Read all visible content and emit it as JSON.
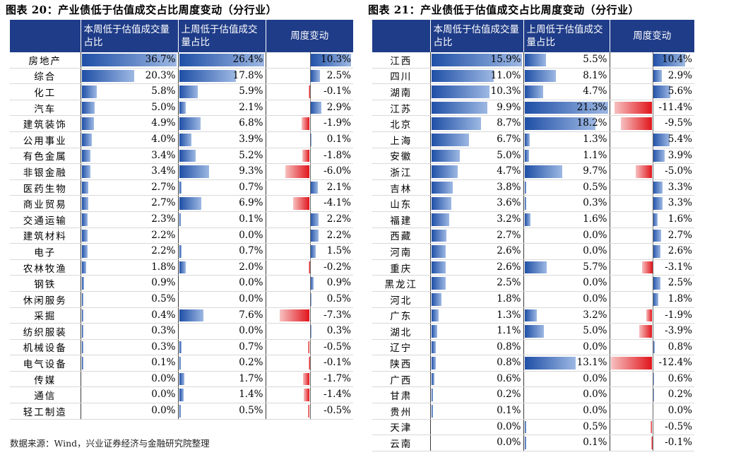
{
  "left": {
    "title": "图表 20：产业债低于估值成交占比周度变动（分行业）",
    "headers": [
      "",
      "本周低于估值成交量占比",
      "上周低于估值成交量占比",
      "周度变动"
    ],
    "rows": [
      {
        "name": "房地产",
        "cur": "36.7%",
        "prev": "26.4%",
        "chg": "10.3%",
        "cur_v": 36.7,
        "prev_v": 26.4,
        "chg_v": 10.3
      },
      {
        "name": "综合",
        "cur": "20.3%",
        "prev": "17.8%",
        "chg": "2.5%",
        "cur_v": 20.3,
        "prev_v": 17.8,
        "chg_v": 2.5
      },
      {
        "name": "化工",
        "cur": "5.8%",
        "prev": "5.9%",
        "chg": "-0.1%",
        "cur_v": 5.8,
        "prev_v": 5.9,
        "chg_v": -0.1
      },
      {
        "name": "汽车",
        "cur": "5.0%",
        "prev": "2.1%",
        "chg": "2.9%",
        "cur_v": 5.0,
        "prev_v": 2.1,
        "chg_v": 2.9
      },
      {
        "name": "建筑装饰",
        "cur": "4.9%",
        "prev": "6.8%",
        "chg": "-1.9%",
        "cur_v": 4.9,
        "prev_v": 6.8,
        "chg_v": -1.9
      },
      {
        "name": "公用事业",
        "cur": "4.0%",
        "prev": "3.9%",
        "chg": "0.1%",
        "cur_v": 4.0,
        "prev_v": 3.9,
        "chg_v": 0.1
      },
      {
        "name": "有色金属",
        "cur": "3.4%",
        "prev": "5.2%",
        "chg": "-1.8%",
        "cur_v": 3.4,
        "prev_v": 5.2,
        "chg_v": -1.8
      },
      {
        "name": "非银金融",
        "cur": "3.4%",
        "prev": "9.3%",
        "chg": "-6.0%",
        "cur_v": 3.4,
        "prev_v": 9.3,
        "chg_v": -6.0
      },
      {
        "name": "医药生物",
        "cur": "2.7%",
        "prev": "0.7%",
        "chg": "2.1%",
        "cur_v": 2.7,
        "prev_v": 0.7,
        "chg_v": 2.1
      },
      {
        "name": "商业贸易",
        "cur": "2.7%",
        "prev": "6.9%",
        "chg": "-4.1%",
        "cur_v": 2.7,
        "prev_v": 6.9,
        "chg_v": -4.1
      },
      {
        "name": "交通运输",
        "cur": "2.3%",
        "prev": "0.1%",
        "chg": "2.2%",
        "cur_v": 2.3,
        "prev_v": 0.1,
        "chg_v": 2.2
      },
      {
        "name": "建筑材料",
        "cur": "2.2%",
        "prev": "0.0%",
        "chg": "2.2%",
        "cur_v": 2.2,
        "prev_v": 0.0,
        "chg_v": 2.2
      },
      {
        "name": "电子",
        "cur": "2.2%",
        "prev": "0.7%",
        "chg": "1.5%",
        "cur_v": 2.2,
        "prev_v": 0.7,
        "chg_v": 1.5
      },
      {
        "name": "农林牧渔",
        "cur": "1.8%",
        "prev": "2.0%",
        "chg": "-0.2%",
        "cur_v": 1.8,
        "prev_v": 2.0,
        "chg_v": -0.2
      },
      {
        "name": "钢铁",
        "cur": "0.9%",
        "prev": "0.0%",
        "chg": "0.9%",
        "cur_v": 0.9,
        "prev_v": 0.0,
        "chg_v": 0.9
      },
      {
        "name": "休闲服务",
        "cur": "0.5%",
        "prev": "0.0%",
        "chg": "0.5%",
        "cur_v": 0.5,
        "prev_v": 0.0,
        "chg_v": 0.5
      },
      {
        "name": "采掘",
        "cur": "0.4%",
        "prev": "7.6%",
        "chg": "-7.3%",
        "cur_v": 0.4,
        "prev_v": 7.6,
        "chg_v": -7.3
      },
      {
        "name": "纺织服装",
        "cur": "0.3%",
        "prev": "0.0%",
        "chg": "0.3%",
        "cur_v": 0.3,
        "prev_v": 0.0,
        "chg_v": 0.3
      },
      {
        "name": "机械设备",
        "cur": "0.3%",
        "prev": "0.7%",
        "chg": "-0.5%",
        "cur_v": 0.3,
        "prev_v": 0.7,
        "chg_v": -0.5
      },
      {
        "name": "电气设备",
        "cur": "0.1%",
        "prev": "0.2%",
        "chg": "-0.1%",
        "cur_v": 0.1,
        "prev_v": 0.2,
        "chg_v": -0.1
      },
      {
        "name": "传媒",
        "cur": "0.0%",
        "prev": "1.7%",
        "chg": "-1.7%",
        "cur_v": 0.0,
        "prev_v": 1.7,
        "chg_v": -1.7
      },
      {
        "name": "通信",
        "cur": "0.0%",
        "prev": "1.4%",
        "chg": "-1.4%",
        "cur_v": 0.0,
        "prev_v": 1.4,
        "chg_v": -1.4
      },
      {
        "name": "轻工制造",
        "cur": "0.0%",
        "prev": "0.5%",
        "chg": "-0.5%",
        "cur_v": 0.0,
        "prev_v": 0.5,
        "chg_v": -0.5
      }
    ]
  },
  "right": {
    "title": "图表 21：产业债低于估值成交占比周度变动（分行业）",
    "headers": [
      "",
      "本周低于估值成交量占比",
      "上周低于估值成交量占比",
      "周度变动"
    ],
    "rows": [
      {
        "name": "江西",
        "cur": "15.9%",
        "prev": "5.5%",
        "chg": "10.4%",
        "cur_v": 15.9,
        "prev_v": 5.5,
        "chg_v": 10.4
      },
      {
        "name": "四川",
        "cur": "11.0%",
        "prev": "8.1%",
        "chg": "2.9%",
        "cur_v": 11.0,
        "prev_v": 8.1,
        "chg_v": 2.9
      },
      {
        "name": "湖南",
        "cur": "10.3%",
        "prev": "4.7%",
        "chg": "5.6%",
        "cur_v": 10.3,
        "prev_v": 4.7,
        "chg_v": 5.6
      },
      {
        "name": "江苏",
        "cur": "9.9%",
        "prev": "21.3%",
        "chg": "-11.4%",
        "cur_v": 9.9,
        "prev_v": 21.3,
        "chg_v": -11.4
      },
      {
        "name": "北京",
        "cur": "8.7%",
        "prev": "18.2%",
        "chg": "-9.5%",
        "cur_v": 8.7,
        "prev_v": 18.2,
        "chg_v": -9.5
      },
      {
        "name": "上海",
        "cur": "6.7%",
        "prev": "1.3%",
        "chg": "5.4%",
        "cur_v": 6.7,
        "prev_v": 1.3,
        "chg_v": 5.4
      },
      {
        "name": "安徽",
        "cur": "5.0%",
        "prev": "1.1%",
        "chg": "3.9%",
        "cur_v": 5.0,
        "prev_v": 1.1,
        "chg_v": 3.9
      },
      {
        "name": "浙江",
        "cur": "4.7%",
        "prev": "9.7%",
        "chg": "-5.0%",
        "cur_v": 4.7,
        "prev_v": 9.7,
        "chg_v": -5.0
      },
      {
        "name": "吉林",
        "cur": "3.8%",
        "prev": "0.5%",
        "chg": "3.3%",
        "cur_v": 3.8,
        "prev_v": 0.5,
        "chg_v": 3.3
      },
      {
        "name": "山东",
        "cur": "3.6%",
        "prev": "0.3%",
        "chg": "3.3%",
        "cur_v": 3.6,
        "prev_v": 0.3,
        "chg_v": 3.3
      },
      {
        "name": "福建",
        "cur": "3.2%",
        "prev": "1.6%",
        "chg": "1.6%",
        "cur_v": 3.2,
        "prev_v": 1.6,
        "chg_v": 1.6
      },
      {
        "name": "西藏",
        "cur": "2.7%",
        "prev": "0.0%",
        "chg": "2.7%",
        "cur_v": 2.7,
        "prev_v": 0.0,
        "chg_v": 2.7
      },
      {
        "name": "河南",
        "cur": "2.6%",
        "prev": "0.0%",
        "chg": "2.6%",
        "cur_v": 2.6,
        "prev_v": 0.0,
        "chg_v": 2.6
      },
      {
        "name": "重庆",
        "cur": "2.6%",
        "prev": "5.7%",
        "chg": "-3.1%",
        "cur_v": 2.6,
        "prev_v": 5.7,
        "chg_v": -3.1
      },
      {
        "name": "黑龙江",
        "cur": "2.5%",
        "prev": "0.0%",
        "chg": "2.5%",
        "cur_v": 2.5,
        "prev_v": 0.0,
        "chg_v": 2.5
      },
      {
        "name": "河北",
        "cur": "1.8%",
        "prev": "0.0%",
        "chg": "1.8%",
        "cur_v": 1.8,
        "prev_v": 0.0,
        "chg_v": 1.8
      },
      {
        "name": "广东",
        "cur": "1.3%",
        "prev": "3.2%",
        "chg": "-1.9%",
        "cur_v": 1.3,
        "prev_v": 3.2,
        "chg_v": -1.9
      },
      {
        "name": "湖北",
        "cur": "1.1%",
        "prev": "5.0%",
        "chg": "-3.9%",
        "cur_v": 1.1,
        "prev_v": 5.0,
        "chg_v": -3.9
      },
      {
        "name": "辽宁",
        "cur": "0.8%",
        "prev": "0.0%",
        "chg": "0.8%",
        "cur_v": 0.8,
        "prev_v": 0.0,
        "chg_v": 0.8
      },
      {
        "name": "陕西",
        "cur": "0.8%",
        "prev": "13.1%",
        "chg": "-12.4%",
        "cur_v": 0.8,
        "prev_v": 13.1,
        "chg_v": -12.4
      },
      {
        "name": "广西",
        "cur": "0.6%",
        "prev": "0.0%",
        "chg": "0.6%",
        "cur_v": 0.6,
        "prev_v": 0.0,
        "chg_v": 0.6
      },
      {
        "name": "甘肃",
        "cur": "0.2%",
        "prev": "0.0%",
        "chg": "0.2%",
        "cur_v": 0.2,
        "prev_v": 0.0,
        "chg_v": 0.2
      },
      {
        "name": "贵州",
        "cur": "0.1%",
        "prev": "0.0%",
        "chg": "0.0%",
        "cur_v": 0.1,
        "prev_v": 0.0,
        "chg_v": 0.0
      },
      {
        "name": "天津",
        "cur": "0.0%",
        "prev": "0.5%",
        "chg": "-0.5%",
        "cur_v": 0.0,
        "prev_v": 0.5,
        "chg_v": -0.5
      },
      {
        "name": "云南",
        "cur": "0.0%",
        "prev": "0.1%",
        "chg": "-0.1%",
        "cur_v": 0.0,
        "prev_v": 0.1,
        "chg_v": -0.1
      }
    ]
  },
  "source": "数据来源：Wind，兴业证券经济与金融研究院整理",
  "colors": {
    "header_bg": "#1f3c88",
    "bar_blue": "#1f4fa6",
    "bar_red": "#e0151b"
  }
}
